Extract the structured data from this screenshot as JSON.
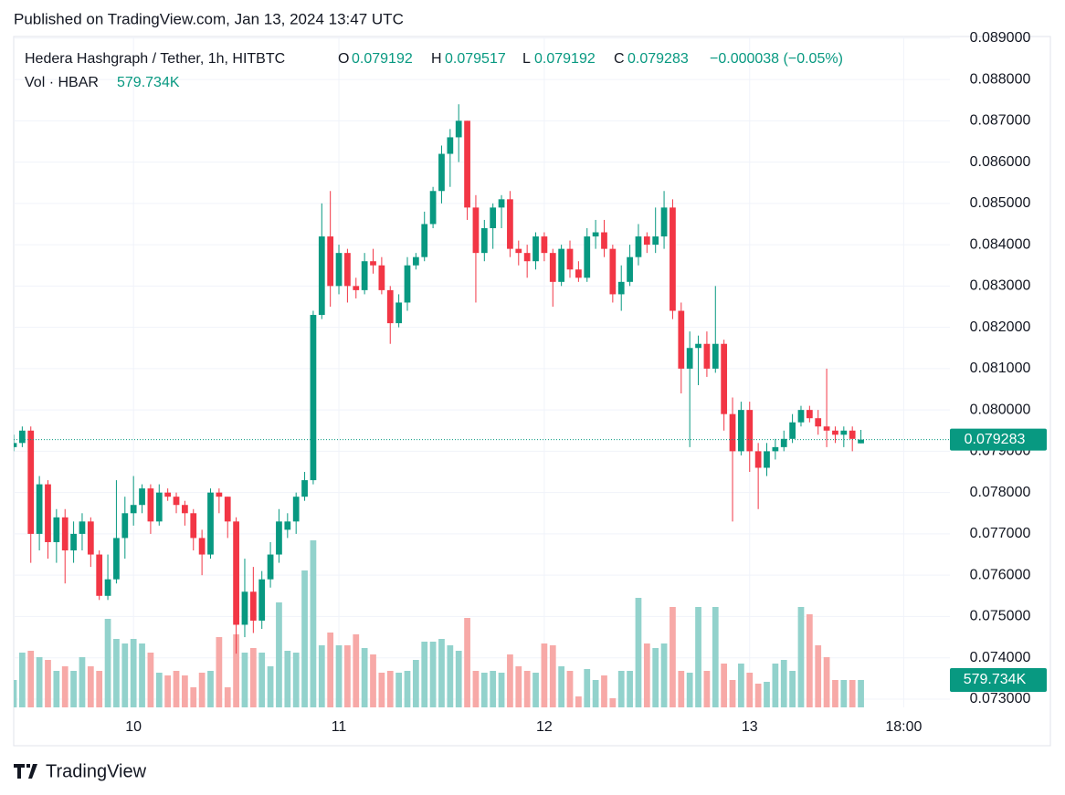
{
  "published": "Published on TradingView.com, Jan 13, 2024 13:47 UTC",
  "brand": "TradingView",
  "chart_data": {
    "type": "candlestick",
    "title": "Hedera Hashgraph / Tether, 1h, HITBTC",
    "ohlc_letters": [
      "O",
      "H",
      "L",
      "C"
    ],
    "change": "−0.000038 (−0.05%)",
    "volume_title": "Vol · HBAR",
    "volume_label": "579.734K",
    "up_color": "#089981",
    "down_color": "#f23645",
    "volume_up_color": "#92d2cc",
    "volume_down_color": "#f7a9a7",
    "grid": true,
    "x": [
      -14,
      -13,
      -12,
      -11,
      -10,
      -9,
      -8,
      -7,
      -6,
      -5,
      -4,
      -3,
      -2,
      -1,
      0,
      1,
      2,
      3,
      4,
      5,
      6,
      7,
      8,
      9,
      10,
      11,
      12,
      13,
      14,
      15,
      16,
      17,
      18,
      19,
      20,
      21,
      22,
      23,
      24,
      25,
      26,
      27,
      28,
      29,
      30,
      31,
      32,
      33,
      34,
      35,
      36,
      37,
      38,
      39,
      40,
      41,
      42,
      43,
      44,
      45,
      46,
      47,
      48,
      49,
      50,
      51,
      52,
      53,
      54,
      55,
      56,
      57,
      58,
      59,
      60,
      61,
      62,
      63,
      64,
      65,
      66,
      67,
      68,
      69,
      70,
      71,
      72,
      73,
      74,
      75,
      76,
      77,
      78,
      79,
      80,
      81,
      82,
      83,
      84,
      85
    ],
    "open": [
      0.0791,
      0.0792,
      0.0795,
      0.077,
      0.0782,
      0.0768,
      0.0774,
      0.0766,
      0.077,
      0.0773,
      0.0765,
      0.0755,
      0.0759,
      0.0769,
      0.0775,
      0.0777,
      0.0781,
      0.0773,
      0.078,
      0.0779,
      0.0777,
      0.0775,
      0.0769,
      0.0765,
      0.078,
      0.0779,
      0.0773,
      0.0748,
      0.0756,
      0.0749,
      0.0759,
      0.0765,
      0.0771,
      0.0773,
      0.0779,
      0.0783,
      0.0823,
      0.0842,
      0.083,
      0.0838,
      0.083,
      0.0829,
      0.0836,
      0.0835,
      0.0829,
      0.0821,
      0.0826,
      0.0835,
      0.0837,
      0.0845,
      0.0853,
      0.0862,
      0.0866,
      0.087,
      0.0849,
      0.0838,
      0.0844,
      0.0849,
      0.0851,
      0.0839,
      0.0838,
      0.0836,
      0.0842,
      0.0838,
      0.0831,
      0.0839,
      0.0834,
      0.0832,
      0.0842,
      0.0843,
      0.0839,
      0.0828,
      0.0831,
      0.0837,
      0.0842,
      0.084,
      0.0842,
      0.0849,
      0.0824,
      0.081,
      0.0815,
      0.0816,
      0.081,
      0.0816,
      0.0799,
      0.079,
      0.08,
      0.079,
      0.0786,
      0.079,
      0.0791,
      0.0793,
      0.0797,
      0.08,
      0.0798,
      0.0796,
      0.0795,
      0.0794,
      0.0795,
      0.079192
    ],
    "high": [
      0.0794,
      0.0796,
      0.0796,
      0.0784,
      0.0783,
      0.0776,
      0.0776,
      0.0773,
      0.0775,
      0.0774,
      0.0766,
      0.0765,
      0.0783,
      0.0779,
      0.0784,
      0.0782,
      0.0782,
      0.0782,
      0.0781,
      0.078,
      0.0778,
      0.0776,
      0.0771,
      0.0781,
      0.0781,
      0.0779,
      0.0774,
      0.0764,
      0.0762,
      0.0761,
      0.0768,
      0.0776,
      0.0775,
      0.078,
      0.0785,
      0.0824,
      0.085,
      0.0853,
      0.084,
      0.0839,
      0.0832,
      0.0838,
      0.0839,
      0.0837,
      0.083,
      0.0828,
      0.0837,
      0.0838,
      0.0848,
      0.0854,
      0.0864,
      0.0868,
      0.0874,
      0.087,
      0.0852,
      0.0846,
      0.085,
      0.0852,
      0.0853,
      0.0841,
      0.084,
      0.0843,
      0.0843,
      0.0839,
      0.084,
      0.0841,
      0.0836,
      0.0844,
      0.0846,
      0.0846,
      0.084,
      0.0835,
      0.084,
      0.0845,
      0.0843,
      0.0849,
      0.0853,
      0.0851,
      0.0826,
      0.0819,
      0.0818,
      0.0819,
      0.083,
      0.0817,
      0.0803,
      0.0802,
      0.0802,
      0.0792,
      0.0792,
      0.0793,
      0.0795,
      0.0799,
      0.0801,
      0.0801,
      0.08,
      0.081,
      0.0796,
      0.0796,
      0.0796,
      0.079517
    ],
    "low": [
      0.079,
      0.0791,
      0.0763,
      0.0766,
      0.0764,
      0.0763,
      0.0758,
      0.0763,
      0.0766,
      0.0762,
      0.0754,
      0.0754,
      0.0758,
      0.0764,
      0.0772,
      0.0775,
      0.077,
      0.0772,
      0.0778,
      0.0775,
      0.0772,
      0.0766,
      0.076,
      0.0764,
      0.0775,
      0.0769,
      0.0741,
      0.0745,
      0.0746,
      0.0747,
      0.0757,
      0.0763,
      0.0769,
      0.077,
      0.0778,
      0.0782,
      0.0822,
      0.0825,
      0.0828,
      0.0826,
      0.0827,
      0.0828,
      0.0833,
      0.0828,
      0.0816,
      0.082,
      0.0824,
      0.0834,
      0.0836,
      0.0844,
      0.085,
      0.0854,
      0.086,
      0.0846,
      0.0826,
      0.0836,
      0.0839,
      0.0844,
      0.0837,
      0.0835,
      0.0832,
      0.0834,
      0.0836,
      0.0825,
      0.083,
      0.0832,
      0.0831,
      0.0831,
      0.0839,
      0.0837,
      0.0826,
      0.0824,
      0.083,
      0.0835,
      0.0838,
      0.0838,
      0.0839,
      0.0822,
      0.0804,
      0.0791,
      0.0806,
      0.0808,
      0.0809,
      0.0795,
      0.0773,
      0.0789,
      0.0785,
      0.0776,
      0.0784,
      0.0788,
      0.079,
      0.0792,
      0.0796,
      0.0797,
      0.0794,
      0.0791,
      0.0792,
      0.0791,
      0.079,
      0.079192
    ],
    "close": [
      0.0792,
      0.0795,
      0.077,
      0.0782,
      0.0768,
      0.0774,
      0.0766,
      0.077,
      0.0773,
      0.0765,
      0.0755,
      0.0759,
      0.0769,
      0.0775,
      0.0777,
      0.0781,
      0.0773,
      0.078,
      0.0779,
      0.0777,
      0.0775,
      0.0769,
      0.0765,
      0.078,
      0.0779,
      0.0773,
      0.0748,
      0.0756,
      0.0749,
      0.0759,
      0.0765,
      0.0773,
      0.0773,
      0.0779,
      0.0783,
      0.0823,
      0.0842,
      0.083,
      0.0838,
      0.083,
      0.0829,
      0.0836,
      0.0835,
      0.0829,
      0.0821,
      0.0826,
      0.0835,
      0.0837,
      0.0845,
      0.0853,
      0.0862,
      0.0866,
      0.087,
      0.0849,
      0.0838,
      0.0844,
      0.0849,
      0.0851,
      0.0839,
      0.0838,
      0.0836,
      0.0842,
      0.0838,
      0.0831,
      0.0839,
      0.0834,
      0.0832,
      0.0842,
      0.0843,
      0.0839,
      0.0828,
      0.0831,
      0.0837,
      0.0842,
      0.084,
      0.0842,
      0.0849,
      0.0824,
      0.081,
      0.0815,
      0.0816,
      0.081,
      0.0816,
      0.0799,
      0.079,
      0.08,
      0.079,
      0.0786,
      0.079,
      0.0791,
      0.0793,
      0.0797,
      0.08,
      0.0798,
      0.0796,
      0.0795,
      0.0794,
      0.0795,
      0.0793,
      0.079283
    ],
    "volume": [
      579000,
      1158000,
      1196600,
      1061500,
      1003600,
      772000,
      868500,
      772000,
      1061500,
      868500,
      772000,
      1872100,
      1447500,
      1351000,
      1447500,
      1351000,
      1158000,
      733400,
      675500,
      772000,
      675500,
      424600,
      733400,
      772000,
      1486100,
      424600,
      1544000,
      1158000,
      1254500,
      1158000,
      868500,
      2219500,
      1196600,
      1158000,
      2895000,
      3531900,
      1312400,
      1582600,
      1312400,
      1312400,
      1544000,
      1254500,
      1119400,
      733400,
      772000,
      733400,
      772000,
      1003600,
      1389600,
      1389600,
      1447500,
      1312400,
      1196600,
      1891400,
      772000,
      733400,
      772000,
      733400,
      1119400,
      868500,
      772000,
      733400,
      1351000,
      1312400,
      868500,
      772000,
      231600,
      810600,
      579000,
      675500,
      193000,
      772000,
      772000,
      2316000,
      1351000,
      1254500,
      1351000,
      2123000,
      772000,
      733400,
      2123000,
      772000,
      2123000,
      926400,
      579000,
      926400,
      733400,
      501800,
      540400,
      926400,
      1003600,
      772000,
      2123000,
      1968600,
      1312400,
      1061500,
      579000,
      579000,
      579000,
      579734
    ],
    "xlim": [
      -14.0,
      95.4
    ],
    "xticks": [
      {
        "value": 0,
        "label": "10"
      },
      {
        "value": 24,
        "label": "11"
      },
      {
        "value": 48,
        "label": "12"
      },
      {
        "value": 72,
        "label": "13"
      },
      {
        "value": 90,
        "label": "18:00"
      }
    ],
    "ylim": [
      0.0728,
      0.08904
    ],
    "yticks": [
      {
        "value": 0.073,
        "label": "0.073000"
      },
      {
        "value": 0.074,
        "label": "0.074000"
      },
      {
        "value": 0.075,
        "label": "0.075000"
      },
      {
        "value": 0.076,
        "label": "0.076000"
      },
      {
        "value": 0.077,
        "label": "0.077000"
      },
      {
        "value": 0.078,
        "label": "0.078000"
      },
      {
        "value": 0.079,
        "label": "0.079000"
      },
      {
        "value": 0.08,
        "label": "0.080000"
      },
      {
        "value": 0.081,
        "label": "0.081000"
      },
      {
        "value": 0.082,
        "label": "0.082000"
      },
      {
        "value": 0.083,
        "label": "0.083000"
      },
      {
        "value": 0.084,
        "label": "0.084000"
      },
      {
        "value": 0.085,
        "label": "0.085000"
      },
      {
        "value": 0.086,
        "label": "0.086000"
      },
      {
        "value": 0.087,
        "label": "0.087000"
      },
      {
        "value": 0.088,
        "label": "0.088000"
      },
      {
        "value": 0.089,
        "label": "0.089000"
      }
    ]
  }
}
